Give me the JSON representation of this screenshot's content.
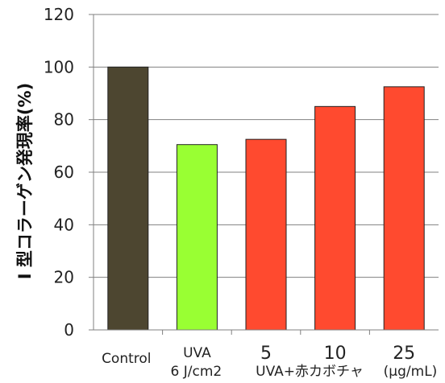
{
  "chart_data": {
    "type": "bar",
    "ylabel": "I 型コラーゲン発現率(%)",
    "ylim": [
      0,
      120
    ],
    "yticks": [
      0,
      20,
      40,
      60,
      80,
      100,
      120
    ],
    "grid": true,
    "categories": [
      {
        "line1": "Control",
        "line2": ""
      },
      {
        "line1": "UVA",
        "line2": "6 J/cm2"
      },
      {
        "line1": "5",
        "line2": ""
      },
      {
        "line1": "10",
        "line2": ""
      },
      {
        "line1": "25",
        "line2": ""
      }
    ],
    "group_label": "UVA+赤カボチャ",
    "unit_label": "(μg/mL)",
    "values": [
      100,
      70.5,
      72.5,
      85,
      92.5
    ],
    "colors": {
      "control": "#4d4630",
      "uva": "#99ff33",
      "treatment": "#ff4a2f",
      "axis": "#808080",
      "grid": "#808080"
    }
  }
}
